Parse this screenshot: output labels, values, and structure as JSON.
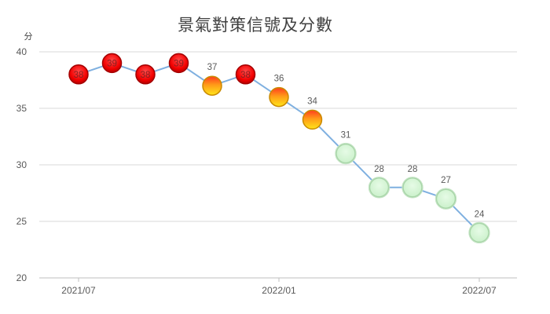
{
  "chart_data": {
    "type": "line",
    "title": "景氣對策信號及分數",
    "ylabel": "分",
    "xlabel": "",
    "ylim": [
      20,
      40
    ],
    "y_ticks": [
      "20",
      "25",
      "30",
      "35",
      "40"
    ],
    "x_tick_labels": [
      "2021/07",
      "2022/01",
      "2022/07"
    ],
    "grid": "horizontal",
    "legend": "none",
    "x": [
      "2021/07",
      "2021/08",
      "2021/09",
      "2021/10",
      "2021/11",
      "2021/12",
      "2022/01",
      "2022/02",
      "2022/03",
      "2022/04",
      "2022/05",
      "2022/06",
      "2022/07"
    ],
    "series": [
      {
        "values": [
          38,
          39,
          38,
          39,
          37,
          38,
          36,
          34,
          31,
          28,
          28,
          27,
          24
        ],
        "signals": [
          "red",
          "red",
          "red",
          "red",
          "yellow-red",
          "red",
          "yellow-red",
          "yellow-red",
          "green",
          "green",
          "green",
          "green",
          "green"
        ],
        "labels": [
          "38",
          "39",
          "38",
          "39",
          "37",
          "38",
          "36",
          "34",
          "31",
          "28",
          "28",
          "27",
          "24"
        ]
      }
    ],
    "colors": {
      "line": "#7fb0e0",
      "red": "#ff1a1a",
      "yellow-red": "#ffb400",
      "green": "#d9f7d9",
      "grid": "#d9d9d9"
    }
  }
}
